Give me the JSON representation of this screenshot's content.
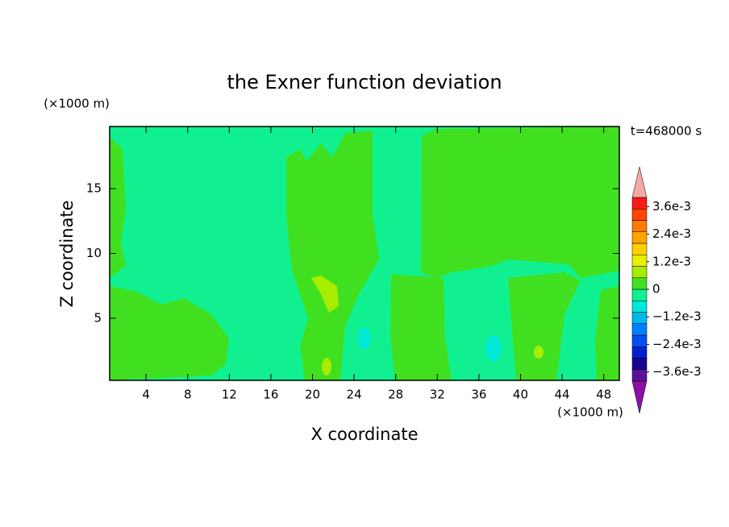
{
  "chart_data": {
    "type": "contour",
    "title": "the Exner function deviation",
    "x_label": "X coordinate",
    "y_label": "Z coordinate",
    "x_unit": "(×1000 m)",
    "y_unit": "(×1000 m)",
    "time_label": "t=468000 s",
    "xlim": [
      0.5,
      49.5
    ],
    "xticks": [
      4,
      8,
      12,
      16,
      20,
      24,
      28,
      32,
      36,
      40,
      44,
      48
    ],
    "ylim": [
      0.2,
      19.8
    ],
    "yticks": [
      5,
      10,
      15
    ],
    "colorbar": {
      "lim": [
        -0.004,
        0.004
      ],
      "ticks": [
        {
          "value": 0.0036,
          "label": "3.6e-3"
        },
        {
          "value": 0.0024,
          "label": "2.4e-3"
        },
        {
          "value": 0.0012,
          "label": "1.2e-3"
        },
        0,
        {
          "value": -0.0012,
          "label": "−1.2e-3"
        },
        {
          "value": -0.0024,
          "label": "−2.4e-3"
        },
        {
          "value": -0.0036,
          "label": "−3.6e-3"
        }
      ],
      "colors": [
        "#5a1098",
        "#1a0090",
        "#0020d0",
        "#0050f0",
        "#0080ff",
        "#00b8f0",
        "#00e8d8",
        "#10f090",
        "#40e020",
        "#a8ec00",
        "#e8f000",
        "#ffd000",
        "#ffa500",
        "#ff7a00",
        "#ff4500",
        "#ff1a1a"
      ],
      "over_color": "#f4a8a8",
      "under_color": "#8a10a8"
    }
  }
}
